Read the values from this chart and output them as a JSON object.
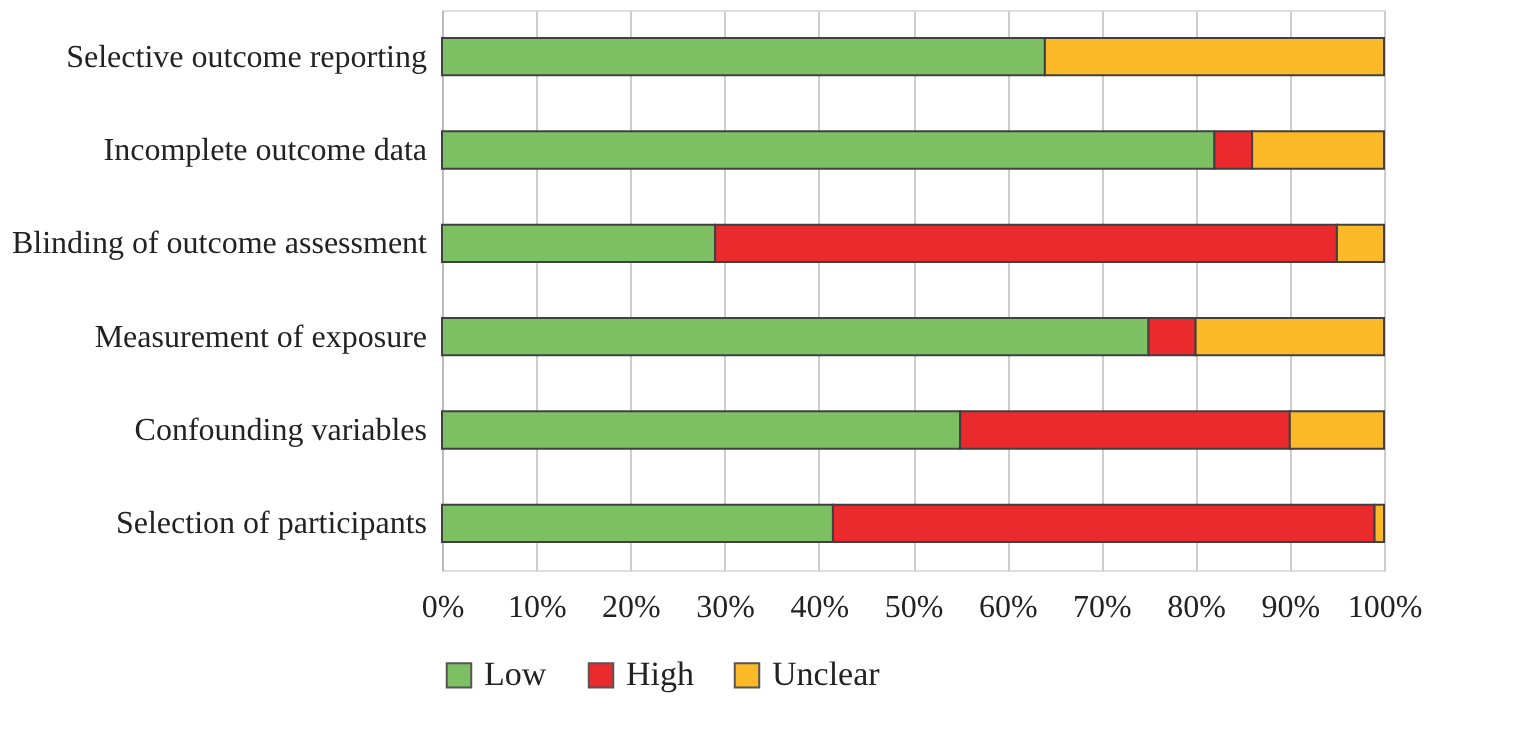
{
  "chart_data": {
    "type": "bar",
    "orientation": "horizontal",
    "stacked": true,
    "categories": [
      "Selective outcome reporting",
      "Incomplete outcome data",
      "Blinding of outcome assessment",
      "Measurement of exposure",
      "Confounding variables",
      "Selection of participants"
    ],
    "series": [
      {
        "name": "Low",
        "color": "#7cc063",
        "values": [
          64,
          82,
          29,
          75,
          55,
          41.5
        ]
      },
      {
        "name": "High",
        "color": "#ea2a2c",
        "values": [
          null,
          4,
          66,
          5,
          35,
          57.5
        ]
      },
      {
        "name": "Unclear",
        "color": "#fbb927",
        "values": [
          36,
          14,
          5,
          20,
          10,
          1
        ]
      }
    ],
    "xlim": [
      0,
      100
    ],
    "xticks": [
      {
        "value": 0,
        "label": "0%"
      },
      {
        "value": 10,
        "label": "10%"
      },
      {
        "value": 20,
        "label": "20%"
      },
      {
        "value": 30,
        "label": "30%"
      },
      {
        "value": 40,
        "label": "40%"
      },
      {
        "value": 50,
        "label": "50%"
      },
      {
        "value": 60,
        "label": "60%"
      },
      {
        "value": 70,
        "label": "70%"
      },
      {
        "value": 80,
        "label": "80%"
      },
      {
        "value": 90,
        "label": "90%"
      },
      {
        "value": 100,
        "label": "100%"
      }
    ],
    "grid": "x",
    "legend": "bottom"
  }
}
